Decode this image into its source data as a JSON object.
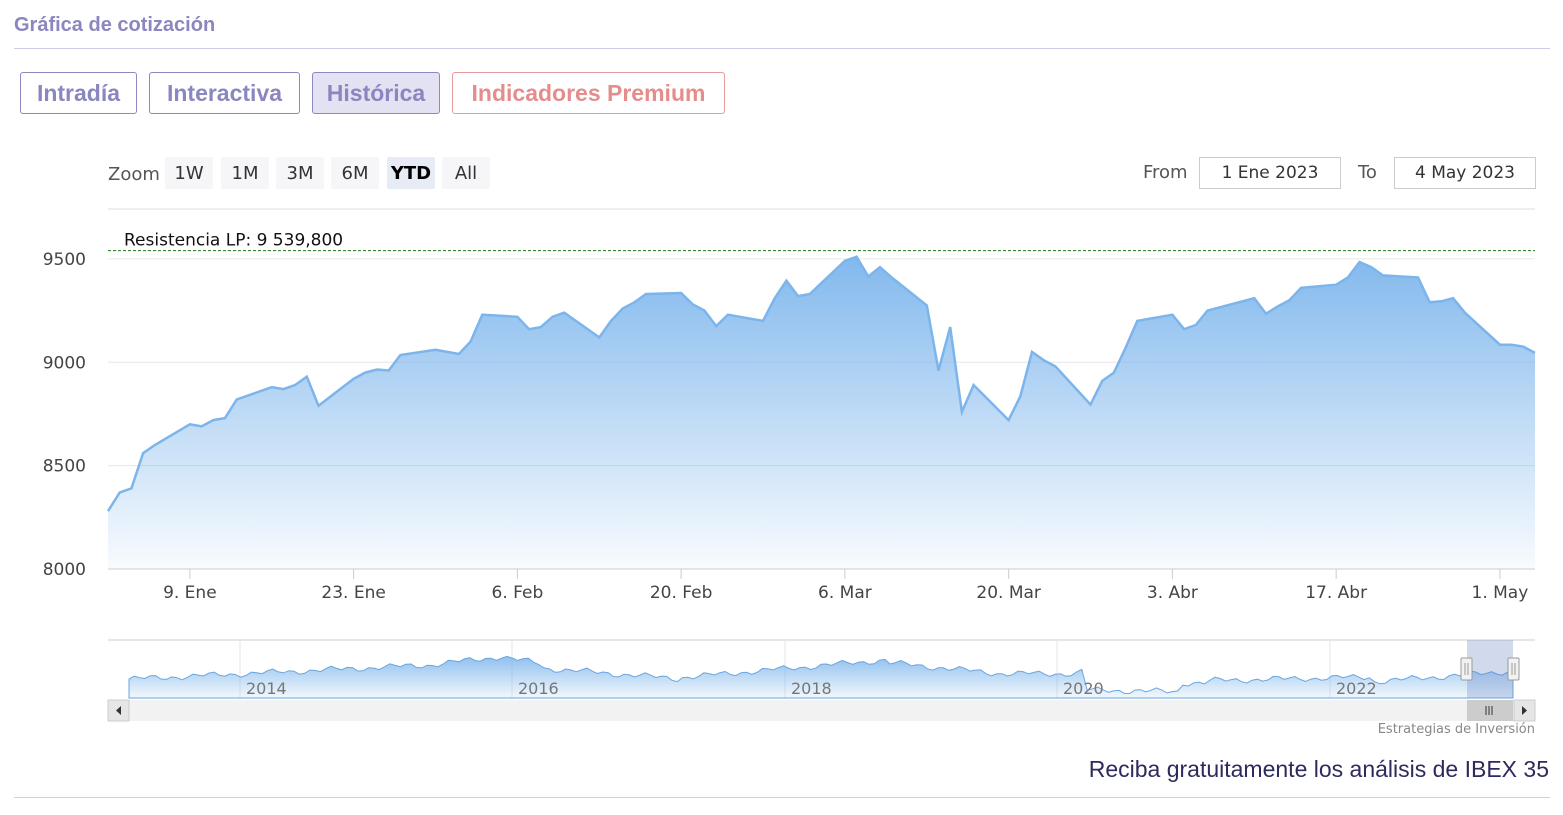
{
  "section_title": "Gráfica de cotización",
  "tabs": [
    {
      "label": "Intradía"
    },
    {
      "label": "Interactiva"
    },
    {
      "label": "Histórica"
    },
    {
      "label": "Indicadores Premium"
    }
  ],
  "colors": {
    "accent": "#8a86bf",
    "premium": "#e58d8d",
    "series": "#7cb5ec",
    "resistance": "#1a7a1a"
  },
  "range_selector": {
    "zoom_label": "Zoom",
    "buttons": [
      "1W",
      "1M",
      "3M",
      "6M",
      "YTD",
      "All"
    ],
    "selected": "YTD",
    "from_label": "From",
    "from_value": "1 Ene 2023",
    "to_label": "To",
    "to_value": "4 May 2023"
  },
  "chart_data": {
    "type": "area",
    "y_ticks": [
      8000,
      8500,
      9000,
      9500
    ],
    "ylim": [
      8000,
      9630
    ],
    "x_ticks": [
      {
        "label": "9. Ene",
        "date": "2023-01-09"
      },
      {
        "label": "23. Ene",
        "date": "2023-01-23"
      },
      {
        "label": "6. Feb",
        "date": "2023-02-06"
      },
      {
        "label": "20. Feb",
        "date": "2023-02-20"
      },
      {
        "label": "6. Mar",
        "date": "2023-03-06"
      },
      {
        "label": "20. Mar",
        "date": "2023-03-20"
      },
      {
        "label": "3. Abr",
        "date": "2023-04-03"
      },
      {
        "label": "17. Abr",
        "date": "2023-04-17"
      },
      {
        "label": "1. May",
        "date": "2023-05-01"
      }
    ],
    "x_range": [
      "2023-01-02",
      "2023-05-04"
    ],
    "series": [
      {
        "dates": [
          "2023-01-02",
          "2023-01-03",
          "2023-01-04",
          "2023-01-05",
          "2023-01-06",
          "2023-01-09",
          "2023-01-10",
          "2023-01-11",
          "2023-01-12",
          "2023-01-13",
          "2023-01-16",
          "2023-01-17",
          "2023-01-18",
          "2023-01-19",
          "2023-01-20",
          "2023-01-23",
          "2023-01-24",
          "2023-01-25",
          "2023-01-26",
          "2023-01-27",
          "2023-01-30",
          "2023-01-31",
          "2023-02-01",
          "2023-02-02",
          "2023-02-03",
          "2023-02-06",
          "2023-02-07",
          "2023-02-08",
          "2023-02-09",
          "2023-02-10",
          "2023-02-13",
          "2023-02-14",
          "2023-02-15",
          "2023-02-16",
          "2023-02-17",
          "2023-02-20",
          "2023-02-21",
          "2023-02-22",
          "2023-02-23",
          "2023-02-24",
          "2023-02-27",
          "2023-02-28",
          "2023-03-01",
          "2023-03-02",
          "2023-03-03",
          "2023-03-06",
          "2023-03-07",
          "2023-03-08",
          "2023-03-09",
          "2023-03-10",
          "2023-03-13",
          "2023-03-14",
          "2023-03-15",
          "2023-03-16",
          "2023-03-17",
          "2023-03-20",
          "2023-03-21",
          "2023-03-22",
          "2023-03-23",
          "2023-03-24",
          "2023-03-27",
          "2023-03-28",
          "2023-03-29",
          "2023-03-30",
          "2023-03-31",
          "2023-04-03",
          "2023-04-04",
          "2023-04-05",
          "2023-04-06",
          "2023-04-10",
          "2023-04-11",
          "2023-04-12",
          "2023-04-13",
          "2023-04-14",
          "2023-04-17",
          "2023-04-18",
          "2023-04-19",
          "2023-04-20",
          "2023-04-21",
          "2023-04-24",
          "2023-04-25",
          "2023-04-26",
          "2023-04-27",
          "2023-04-28",
          "2023-05-01",
          "2023-05-02",
          "2023-05-03",
          "2023-05-04"
        ],
        "values": [
          8280,
          8370,
          8390,
          8560,
          8600,
          8700,
          8690,
          8720,
          8730,
          8820,
          8880,
          8870,
          8890,
          8930,
          8790,
          8920,
          8950,
          8965,
          8960,
          9035,
          9060,
          9050,
          9040,
          9100,
          9230,
          9220,
          9160,
          9170,
          9220,
          9240,
          9120,
          9200,
          9260,
          9290,
          9330,
          9335,
          9280,
          9250,
          9175,
          9230,
          9200,
          9310,
          9395,
          9320,
          9330,
          9490,
          9510,
          9415,
          9460,
          9410,
          9275,
          8960,
          9170,
          8760,
          8890,
          8720,
          8835,
          9050,
          9010,
          8980,
          8795,
          8910,
          8950,
          9070,
          9200,
          9230,
          9160,
          9180,
          9250,
          9310,
          9235,
          9270,
          9300,
          9360,
          9375,
          9410,
          9485,
          9460,
          9420,
          9410,
          9290,
          9295,
          9310,
          9240,
          9085,
          9085,
          9075,
          9045
        ]
      }
    ],
    "annotations": [
      {
        "label": "Resistencia LP: 9 539,800",
        "y": 9539.8,
        "style": "dashed",
        "color": "#1a7a1a"
      }
    ],
    "navigator": {
      "years": [
        "2014",
        "2016",
        "2018",
        "2020",
        "2022"
      ]
    },
    "credits": "Estrategias de Inversión"
  },
  "cta": "Reciba gratuitamente los análisis de IBEX 35"
}
